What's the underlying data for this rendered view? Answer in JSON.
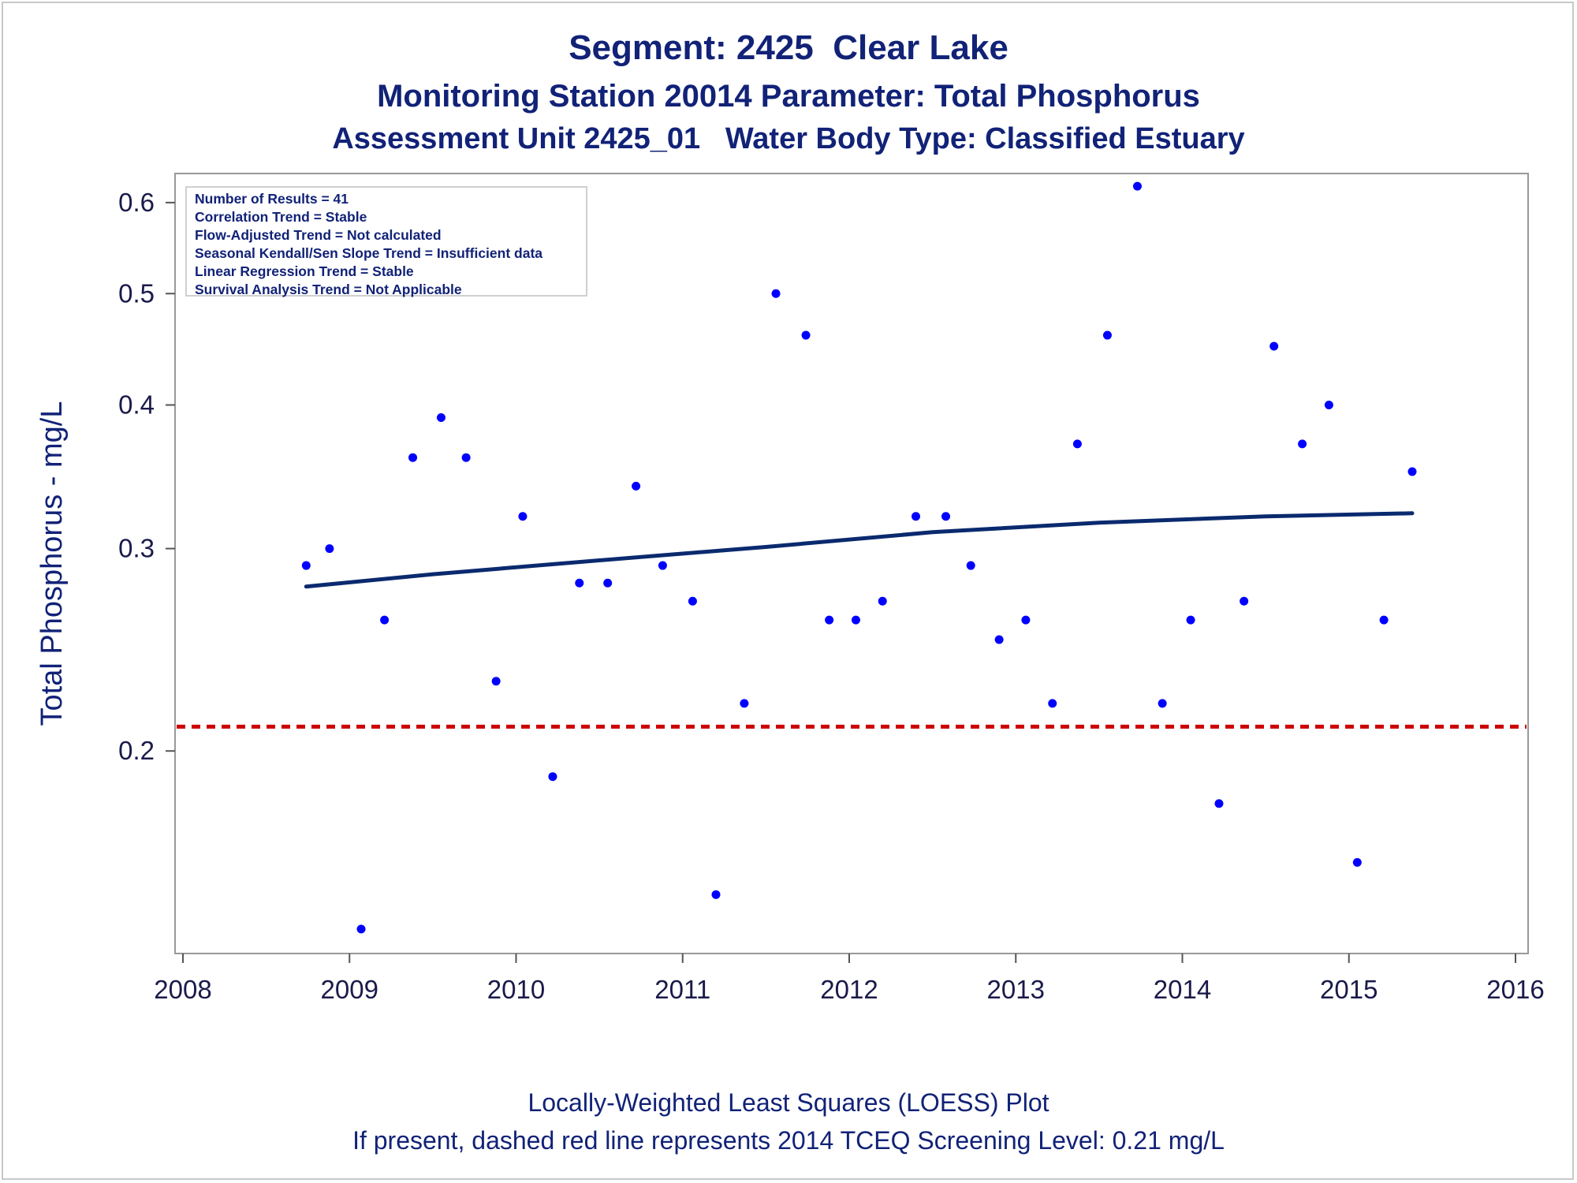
{
  "titles": {
    "line1": "Segment: 2425  Clear Lake",
    "line2": "Monitoring Station 20014 Parameter: Total Phosphorus",
    "line3": "Assessment Unit 2425_01   Water Body Type: Classified Estuary"
  },
  "footnotes": {
    "line1": "Locally-Weighted Least Squares (LOESS) Plot",
    "line2": "If present, dashed red line represents 2014 TCEQ Screening Level: 0.21 mg/L"
  },
  "stats_box": [
    "Number of Results = 41",
    "Correlation Trend = Stable",
    "Flow-Adjusted Trend = Not calculated",
    "Seasonal Kendall/Sen Slope Trend = Insufficient data",
    "Linear Regression Trend = Stable",
    "Survival Analysis Trend = Not Applicable"
  ],
  "colors": {
    "points": "#0000ff",
    "loess_line": "#0a2a6e",
    "screening_line": "#cc0000",
    "text": "#112277"
  },
  "chart_data": {
    "type": "scatter",
    "ylabel": "Total Phosphorus - mg/L",
    "xlabel": "",
    "yscale": "log",
    "xlim": [
      2008,
      2016
    ],
    "ylim": [
      0.135,
      0.63
    ],
    "x_ticks": [
      "2008",
      "2009",
      "2010",
      "2011",
      "2012",
      "2013",
      "2014",
      "2015",
      "2016"
    ],
    "y_ticks": [
      "0.2",
      "0.3",
      "0.4",
      "0.5",
      "0.6"
    ],
    "points": [
      {
        "x": 2008.74,
        "y": 0.29
      },
      {
        "x": 2008.88,
        "y": 0.3
      },
      {
        "x": 2009.07,
        "y": 0.14
      },
      {
        "x": 2009.21,
        "y": 0.26
      },
      {
        "x": 2009.38,
        "y": 0.36
      },
      {
        "x": 2009.55,
        "y": 0.39
      },
      {
        "x": 2009.7,
        "y": 0.36
      },
      {
        "x": 2009.88,
        "y": 0.23
      },
      {
        "x": 2010.04,
        "y": 0.32
      },
      {
        "x": 2010.22,
        "y": 0.19
      },
      {
        "x": 2010.38,
        "y": 0.28
      },
      {
        "x": 2010.55,
        "y": 0.28
      },
      {
        "x": 2010.72,
        "y": 0.34
      },
      {
        "x": 2010.88,
        "y": 0.29
      },
      {
        "x": 2011.06,
        "y": 0.27
      },
      {
        "x": 2011.2,
        "y": 0.15
      },
      {
        "x": 2011.37,
        "y": 0.22
      },
      {
        "x": 2011.56,
        "y": 0.5
      },
      {
        "x": 2011.74,
        "y": 0.46
      },
      {
        "x": 2011.88,
        "y": 0.26
      },
      {
        "x": 2012.04,
        "y": 0.26
      },
      {
        "x": 2012.2,
        "y": 0.27
      },
      {
        "x": 2012.4,
        "y": 0.32
      },
      {
        "x": 2012.58,
        "y": 0.32
      },
      {
        "x": 2012.73,
        "y": 0.29
      },
      {
        "x": 2012.9,
        "y": 0.25
      },
      {
        "x": 2013.06,
        "y": 0.26
      },
      {
        "x": 2013.22,
        "y": 0.22
      },
      {
        "x": 2013.37,
        "y": 0.37
      },
      {
        "x": 2013.55,
        "y": 0.46
      },
      {
        "x": 2013.73,
        "y": 0.62
      },
      {
        "x": 2013.88,
        "y": 0.22
      },
      {
        "x": 2014.05,
        "y": 0.26
      },
      {
        "x": 2014.22,
        "y": 0.18
      },
      {
        "x": 2014.37,
        "y": 0.27
      },
      {
        "x": 2014.55,
        "y": 0.45
      },
      {
        "x": 2014.72,
        "y": 0.37
      },
      {
        "x": 2014.88,
        "y": 0.4
      },
      {
        "x": 2015.05,
        "y": 0.16
      },
      {
        "x": 2015.21,
        "y": 0.26
      },
      {
        "x": 2015.38,
        "y": 0.35
      }
    ],
    "loess_line": [
      {
        "x": 2008.74,
        "y": 0.278
      },
      {
        "x": 2009.5,
        "y": 0.285
      },
      {
        "x": 2010.5,
        "y": 0.293
      },
      {
        "x": 2011.5,
        "y": 0.301
      },
      {
        "x": 2012.5,
        "y": 0.31
      },
      {
        "x": 2013.5,
        "y": 0.316
      },
      {
        "x": 2014.5,
        "y": 0.32
      },
      {
        "x": 2015.38,
        "y": 0.322
      }
    ],
    "screening_level": 0.21
  }
}
